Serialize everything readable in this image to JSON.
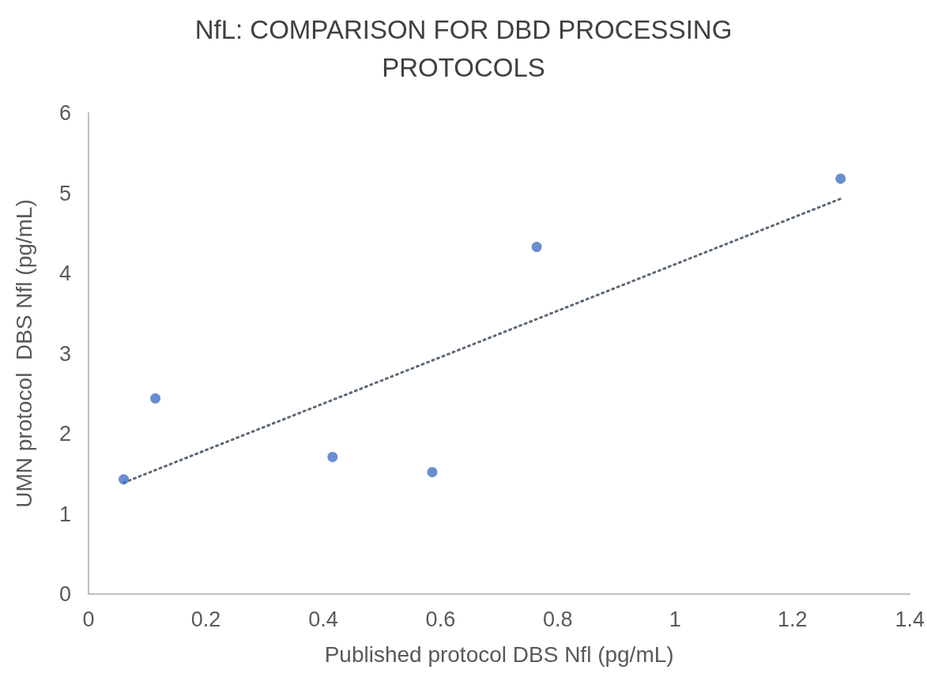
{
  "chart_data": {
    "type": "scatter",
    "title": "NfL: COMPARISON FOR DBD PROCESSING\nPROTOCOLS",
    "xlabel": "Published protocol DBS Nfl (pg/mL)",
    "ylabel": "UMN protocol  DBS Nfl (pg/mL)",
    "series": [
      {
        "color": "#4472c4",
        "marker": "circle",
        "x": [
          0.06,
          0.114,
          0.416,
          0.586,
          0.764,
          1.282
        ],
        "values": [
          1.43,
          2.44,
          1.71,
          1.52,
          4.33,
          5.18
        ]
      },
      {
        "type": "line",
        "color": "#5b6877",
        "marker": "none",
        "line_style": "dotted",
        "x": [
          0.06,
          1.282
        ],
        "values": [
          1.39,
          4.93
        ]
      }
    ],
    "xlim": [
      0,
      1.4
    ],
    "xticks": [
      0,
      0.2,
      0.4,
      0.6,
      0.8,
      1,
      1.2,
      1.4
    ],
    "ylim": [
      0,
      6
    ],
    "yticks": [
      0,
      1,
      2,
      3,
      4,
      5,
      6
    ],
    "grid": false
  }
}
